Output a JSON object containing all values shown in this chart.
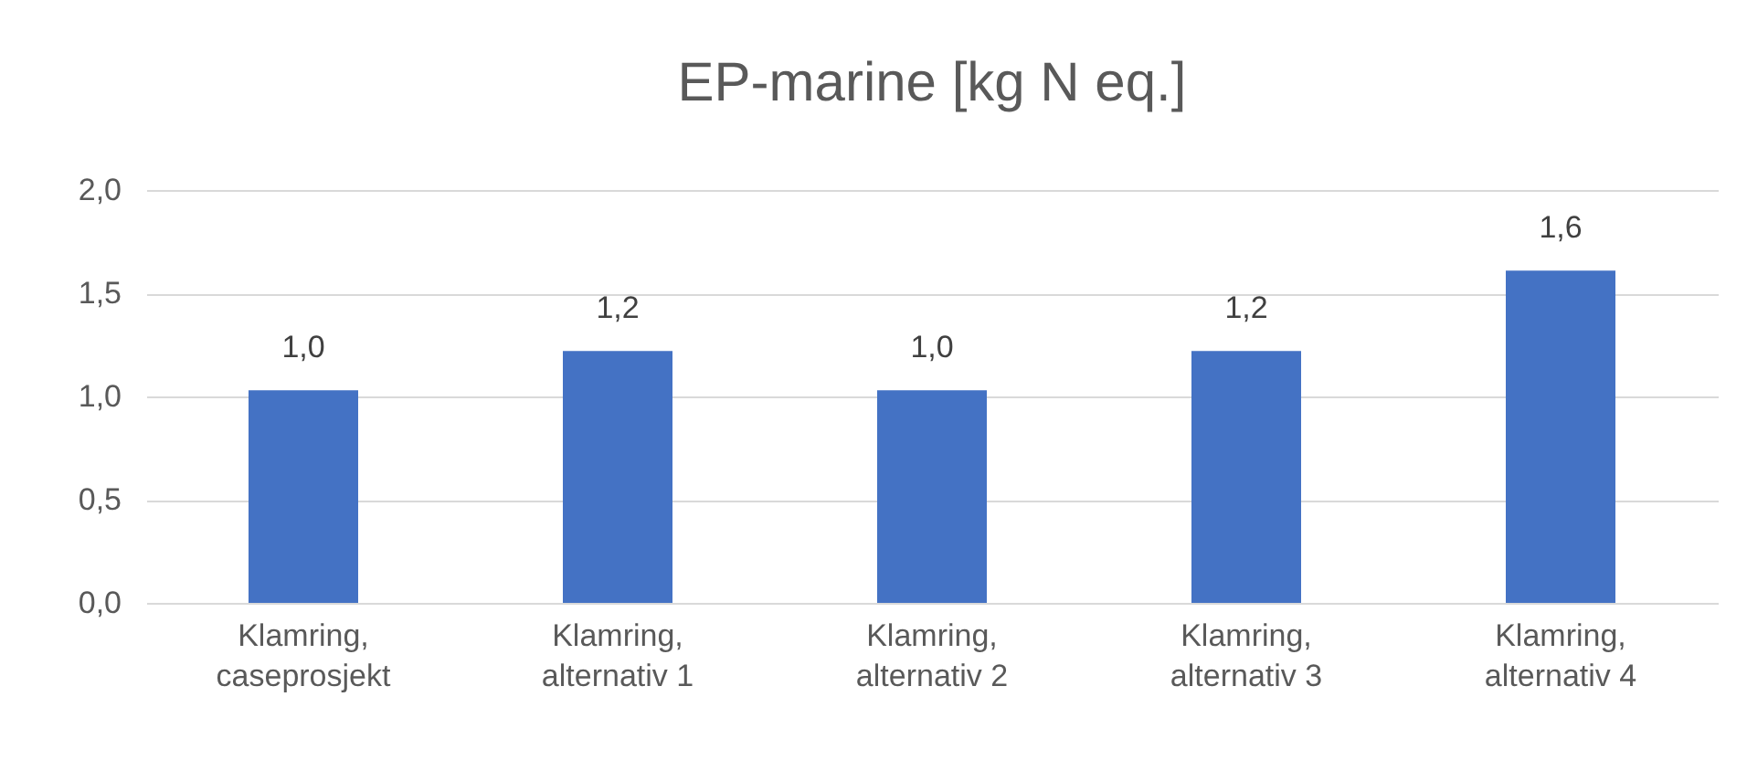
{
  "chart_data": {
    "type": "bar",
    "title": "EP-marine [kg N eq.]",
    "categories": [
      "Klamring, caseprosjekt",
      "Klamring, alternativ 1",
      "Klamring, alternativ 2",
      "Klamring, alternativ 3",
      "Klamring, alternativ 4"
    ],
    "values": [
      1.03,
      1.22,
      1.03,
      1.22,
      1.61
    ],
    "value_labels": [
      "1,0",
      "1,2",
      "1,0",
      "1,2",
      "1,6"
    ],
    "color": "#4472c4",
    "ylim": [
      0,
      2
    ],
    "yticks": [
      {
        "value": 0,
        "label": "0,0"
      },
      {
        "value": 0.5,
        "label": "0,5"
      },
      {
        "value": 1,
        "label": "1,0"
      },
      {
        "value": 1.5,
        "label": "1,5"
      },
      {
        "value": 2,
        "label": "2,0"
      }
    ],
    "grid": "y"
  }
}
